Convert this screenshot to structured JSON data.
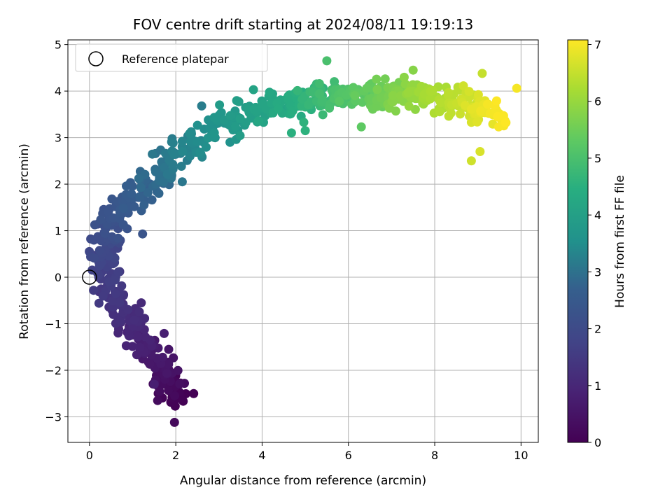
{
  "chart_data": {
    "type": "scatter",
    "title": "FOV centre drift starting at 2024/08/11 19:19:13",
    "xlabel": "Angular distance from reference (arcmin)",
    "ylabel": "Rotation from reference (arcmin)",
    "xlim": [
      -0.5,
      10.4
    ],
    "ylim": [
      -3.55,
      5.1
    ],
    "xticks": [
      0,
      2,
      4,
      6,
      8,
      10
    ],
    "yticks": [
      -3,
      -2,
      -1,
      0,
      1,
      2,
      3,
      4,
      5
    ],
    "grid": true,
    "legend": {
      "placement": "top-left",
      "entries": [
        "Reference platepar"
      ]
    },
    "reference_point": {
      "x": 0,
      "y": 0,
      "label": "Reference platepar"
    },
    "colorbar": {
      "label": "Hours from first FF file",
      "range": [
        0,
        7.08
      ],
      "ticks": [
        0,
        1,
        2,
        3,
        4,
        5,
        6,
        7
      ],
      "colormap": "viridis"
    },
    "trend_path": [
      {
        "t": 0.0,
        "x": 1.98,
        "y": -2.6
      },
      {
        "t": 0.5,
        "x": 1.65,
        "y": -1.9
      },
      {
        "t": 1.0,
        "x": 1.0,
        "y": -1.1
      },
      {
        "t": 1.4,
        "x": 0.55,
        "y": -0.4
      },
      {
        "t": 1.8,
        "x": 0.3,
        "y": 0.4
      },
      {
        "t": 2.2,
        "x": 0.45,
        "y": 1.1
      },
      {
        "t": 2.6,
        "x": 1.05,
        "y": 1.75
      },
      {
        "t": 3.0,
        "x": 1.7,
        "y": 2.35
      },
      {
        "t": 3.4,
        "x": 2.5,
        "y": 2.95
      },
      {
        "t": 3.8,
        "x": 3.4,
        "y": 3.4
      },
      {
        "t": 4.3,
        "x": 4.5,
        "y": 3.72
      },
      {
        "t": 4.9,
        "x": 5.6,
        "y": 3.88
      },
      {
        "t": 5.5,
        "x": 6.7,
        "y": 3.95
      },
      {
        "t": 6.1,
        "x": 7.8,
        "y": 3.92
      },
      {
        "t": 6.6,
        "x": 8.8,
        "y": 3.7
      },
      {
        "t": 7.08,
        "x": 9.5,
        "y": 3.4
      }
    ],
    "outliers": [
      {
        "t": 0.2,
        "x": 1.97,
        "y": -3.12
      },
      {
        "t": 0.25,
        "x": 1.58,
        "y": -2.65
      },
      {
        "t": 0.3,
        "x": 2.2,
        "y": -2.28
      },
      {
        "t": 0.8,
        "x": 1.5,
        "y": -2.3
      },
      {
        "t": 1.1,
        "x": 1.2,
        "y": -0.55
      },
      {
        "t": 1.25,
        "x": 0.72,
        "y": -0.95
      },
      {
        "t": 1.45,
        "x": 0.7,
        "y": 0.12
      },
      {
        "t": 2.3,
        "x": 1.23,
        "y": 0.93
      },
      {
        "t": 2.4,
        "x": 0.52,
        "y": 1.68
      },
      {
        "t": 3.1,
        "x": 2.15,
        "y": 2.05
      },
      {
        "t": 3.2,
        "x": 2.6,
        "y": 3.68
      },
      {
        "t": 3.7,
        "x": 3.4,
        "y": 2.96
      },
      {
        "t": 4.1,
        "x": 3.8,
        "y": 4.03
      },
      {
        "t": 4.5,
        "x": 4.68,
        "y": 3.1
      },
      {
        "t": 4.55,
        "x": 5.0,
        "y": 3.15
      },
      {
        "t": 5.0,
        "x": 5.5,
        "y": 4.65
      },
      {
        "t": 5.3,
        "x": 6.3,
        "y": 3.23
      },
      {
        "t": 5.8,
        "x": 7.5,
        "y": 4.45
      },
      {
        "t": 6.6,
        "x": 8.85,
        "y": 2.5
      },
      {
        "t": 6.7,
        "x": 9.05,
        "y": 2.7
      },
      {
        "t": 6.5,
        "x": 9.1,
        "y": 4.38
      },
      {
        "t": 7.0,
        "x": 9.9,
        "y": 4.06
      }
    ]
  }
}
